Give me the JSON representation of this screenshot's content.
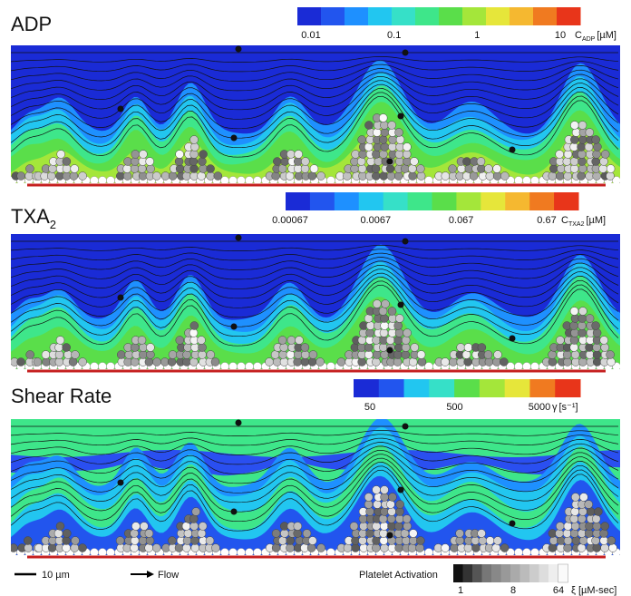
{
  "panels": [
    {
      "title": "ADP",
      "colorbar": {
        "ticks": [
          "0.01",
          "0.1",
          "1",
          "10"
        ],
        "symbol": "C",
        "subscript": "ADP",
        "unit": "[µM]"
      }
    },
    {
      "title": "TXA",
      "title_subscript": "2",
      "colorbar": {
        "ticks": [
          "0.00067",
          "0.0067",
          "0.067",
          "0.67"
        ],
        "symbol": "C",
        "subscript": "TXA2",
        "unit": "[µM]"
      }
    },
    {
      "title": "Shear Rate",
      "colorbar": {
        "ticks": [
          "50",
          "500",
          "5000"
        ],
        "symbol": "γ",
        "unit": "[s⁻¹]"
      }
    }
  ],
  "scale_bar": "10 µm",
  "flow": "Flow",
  "activation_legend": {
    "title": "Platelet Activation",
    "ticks": [
      "1",
      "8",
      "64"
    ],
    "symbol": "ξ",
    "unit": "[µM-sec]"
  }
}
